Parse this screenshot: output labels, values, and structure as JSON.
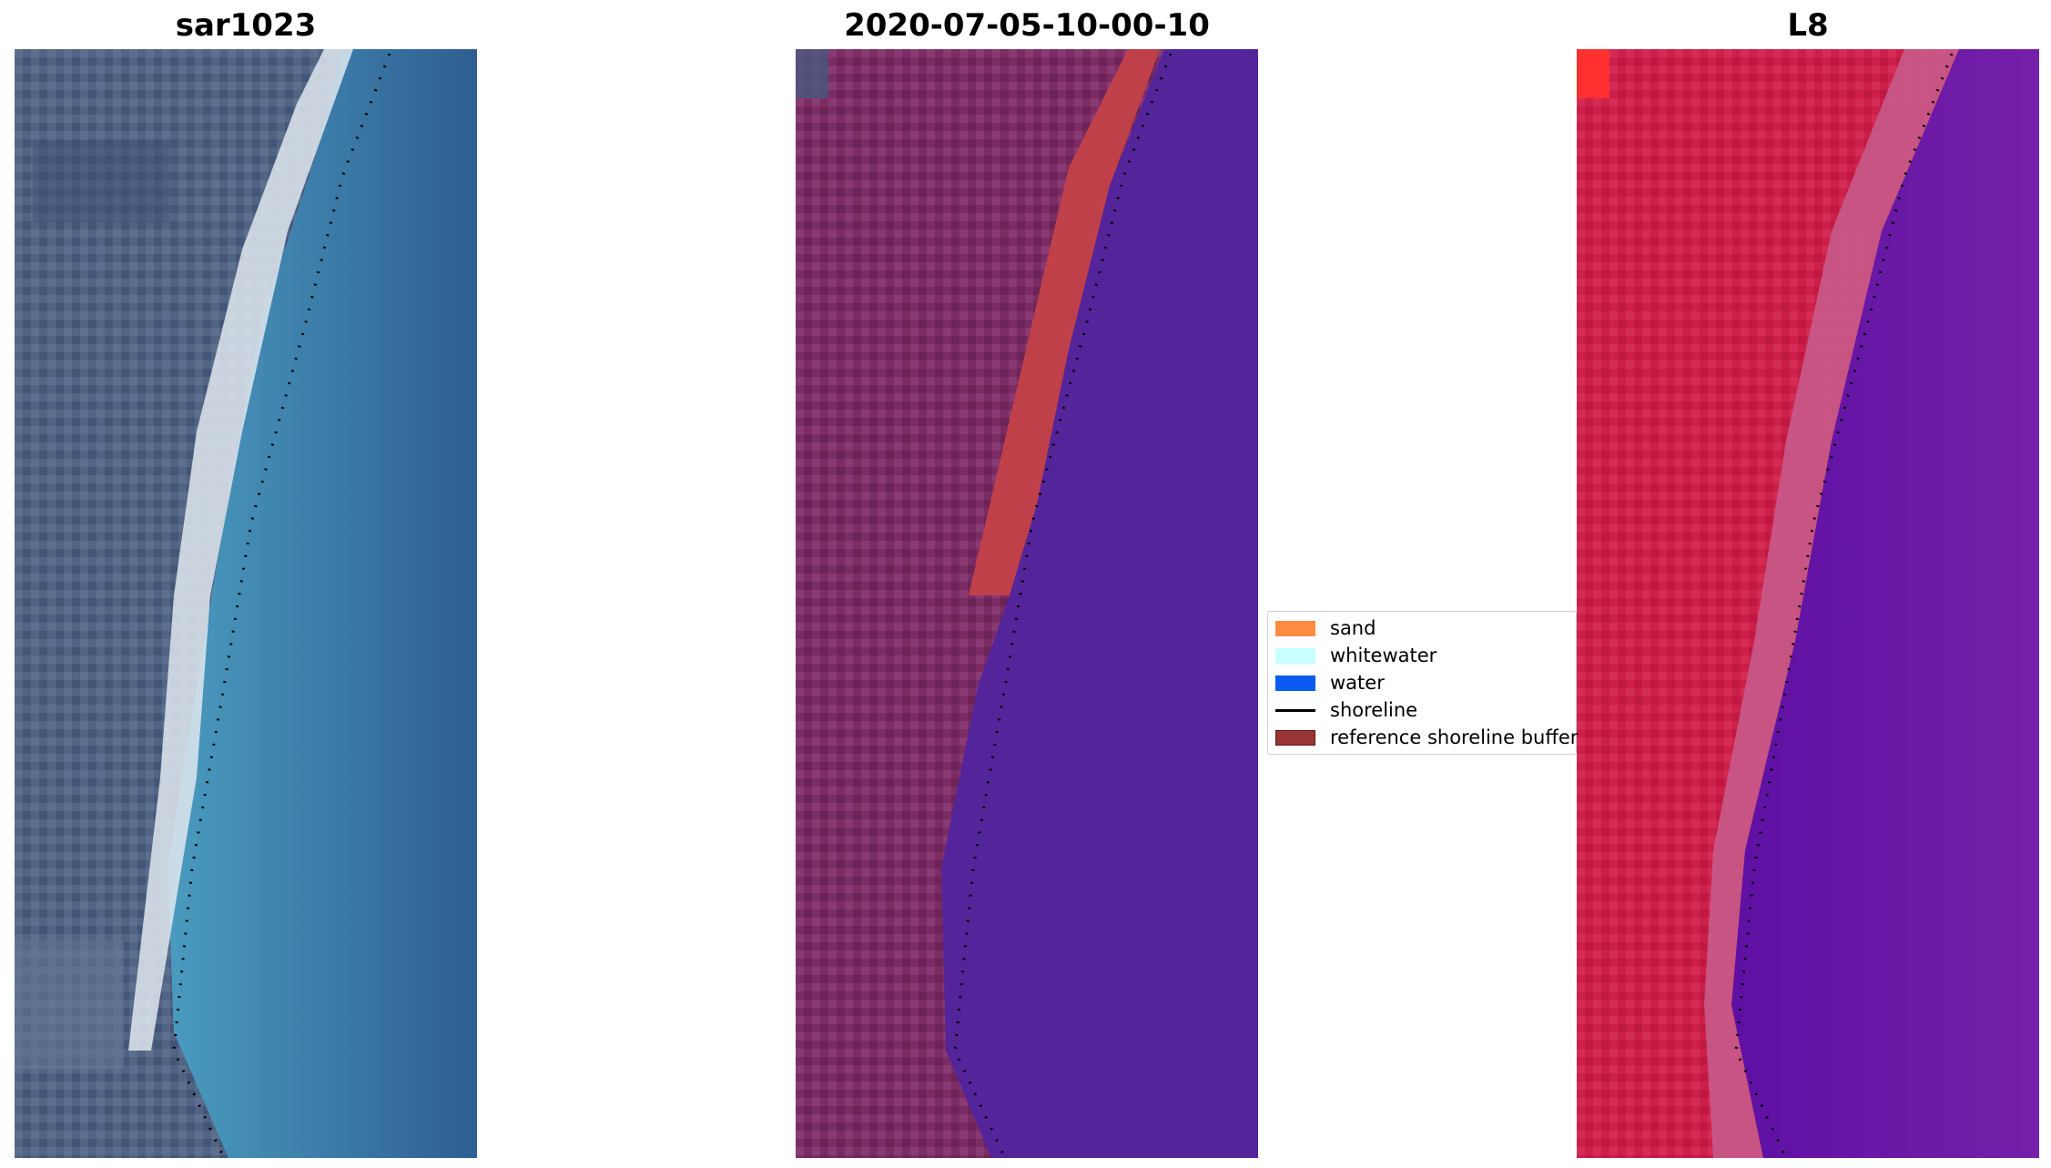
{
  "panels": [
    {
      "title": "sar1023"
    },
    {
      "title": "2020-07-05-10-00-10"
    },
    {
      "title": "L8"
    }
  ],
  "legend": {
    "items": [
      {
        "label": "sand",
        "color": "#ff8c40",
        "kind": "patch"
      },
      {
        "label": "whitewater",
        "color": "#c8ffff",
        "kind": "patch"
      },
      {
        "label": "water",
        "color": "#0a5cf0",
        "kind": "patch"
      },
      {
        "label": "shoreline",
        "color": "#000000",
        "kind": "line"
      },
      {
        "label": "reference shoreline buffer",
        "color": "#9b3535",
        "kind": "patch"
      }
    ]
  },
  "colors": {
    "rgb_land": "#4a5a7a",
    "rgb_beach": "#e8eef2",
    "rgb_water": "#3a78a4",
    "classified_land": "#7a2a62",
    "classified_buffer": "#c0404a",
    "classified_water": "#54249a",
    "false_color_land": "#cc1f4a",
    "false_color_water": "#6a1aa8"
  }
}
